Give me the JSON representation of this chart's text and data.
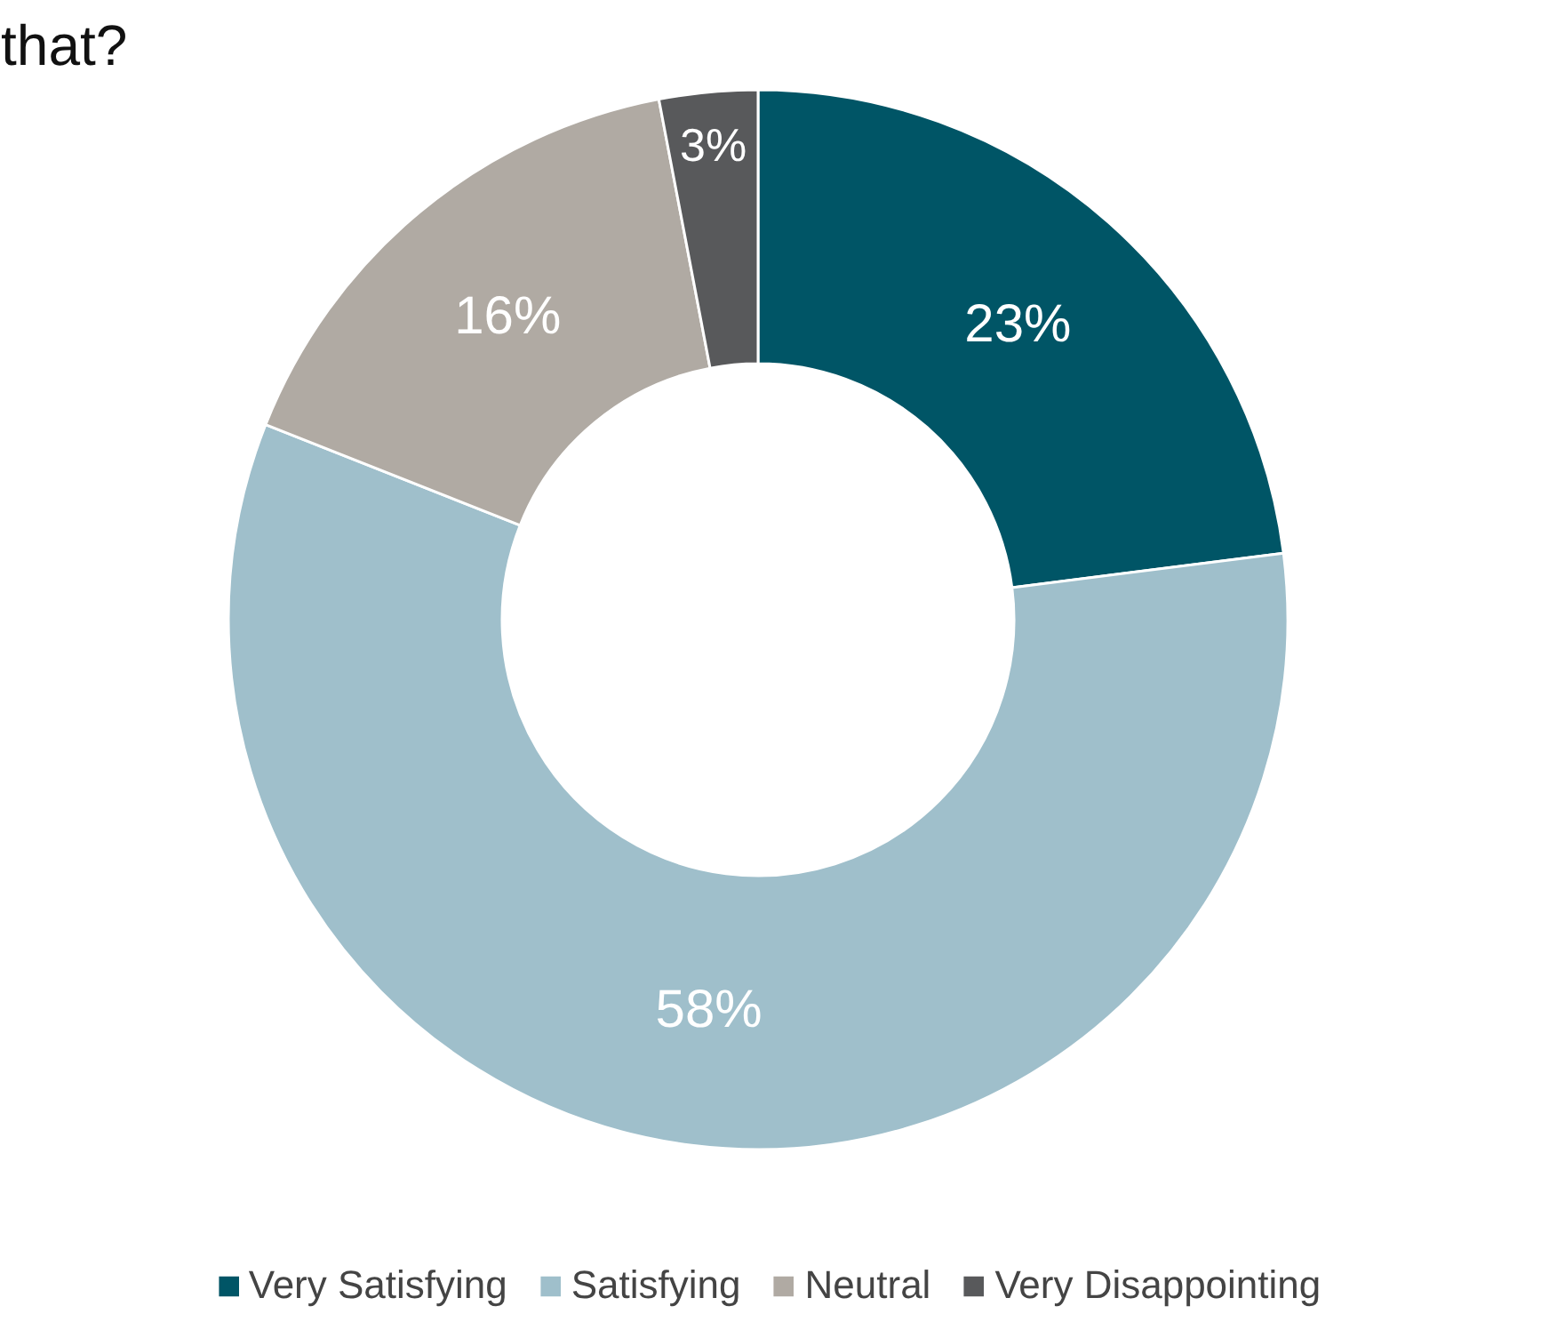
{
  "chart_data": {
    "type": "donut",
    "title": "that?",
    "categories": [
      "Very Satisfying",
      "Satisfying",
      "Neutral",
      "Very Disappointing"
    ],
    "values": [
      23,
      58,
      16,
      3
    ],
    "colors": [
      "#005566",
      "#9fbfcb",
      "#b0aaa3",
      "#58595b"
    ],
    "value_labels": [
      "23%",
      "58%",
      "16%",
      "3%"
    ],
    "legend": "bottom"
  }
}
